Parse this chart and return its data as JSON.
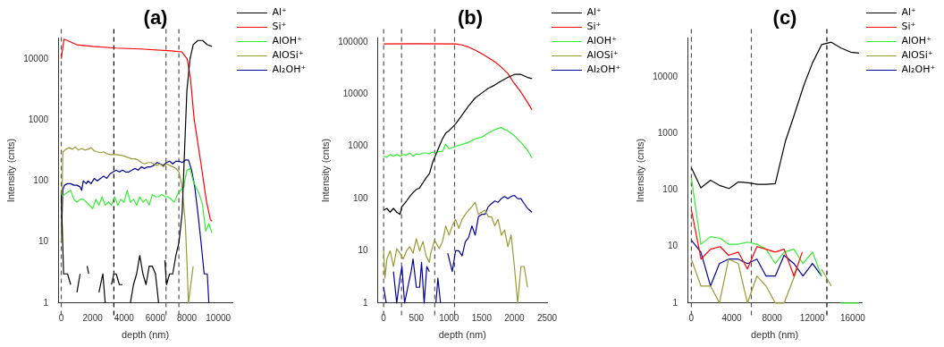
{
  "chart_data": [
    {
      "type": "line",
      "title": "(a)",
      "xlabel": "depth (nm)",
      "ylabel": "Intensity (cnts)",
      "log": "y",
      "grid": false,
      "legend": "top right",
      "marker": "none",
      "line_style": "solid",
      "xlim": [
        -200,
        10900
      ],
      "xticks": [
        0,
        2000,
        4000,
        6000,
        8000,
        10000
      ],
      "ylim": [
        1,
        22000
      ],
      "yticks": [
        1,
        10,
        100,
        1000,
        10000
      ],
      "ref_lines": [
        {
          "axis": "x",
          "value": 0,
          "color": "#555555",
          "line_style": "dashed"
        },
        {
          "axis": "x",
          "value": 3350,
          "color": "#000000",
          "line_style": "dashed"
        },
        {
          "axis": "x",
          "value": 6670,
          "color": "#555555",
          "line_style": "dashed"
        },
        {
          "axis": "x",
          "value": 7490,
          "color": "#555555",
          "line_style": "dashed"
        }
      ],
      "series": [
        {
          "name": "Al⁺",
          "color": "#000000",
          "x": [
            0,
            150,
            400,
            600,
            800,
            1000,
            1200,
            1400,
            1650,
            1750,
            2000,
            2400,
            2650,
            2800,
            3000,
            3200,
            3350,
            3500,
            3700,
            3900,
            4100,
            4400,
            4600,
            4800,
            5000,
            5200,
            5400,
            5600,
            5800,
            6000,
            6200,
            6400,
            6600,
            6700,
            6900,
            7100,
            7300,
            7500,
            7700,
            7850,
            8000,
            8200,
            8400,
            8700,
            9000,
            9300,
            9600
          ],
          "values": [
            60,
            3,
            3,
            2,
            null,
            1.5,
            3,
            null,
            4,
            3,
            null,
            1.5,
            3,
            1,
            null,
            2,
            3,
            3,
            2,
            2,
            null,
            1,
            2,
            3,
            6,
            3,
            2,
            4,
            4,
            3,
            1,
            null,
            5,
            2,
            3,
            3,
            6,
            10,
            30,
            300,
            3000,
            10000,
            17000,
            20000,
            20000,
            17000,
            16000
          ]
        },
        {
          "name": "Si⁺",
          "color": "#ff0000",
          "x": [
            0,
            175,
            1000,
            2000,
            3500,
            5000,
            7000,
            7670,
            8020,
            8230,
            8460,
            8900,
            9250,
            9500,
            9600
          ],
          "values": [
            10000,
            21000,
            17000,
            16000,
            15000,
            14500,
            13500,
            13000,
            10000,
            4700,
            1050,
            190,
            46,
            23,
            22
          ]
        },
        {
          "name": "AlOH⁺",
          "color": "#33ee33",
          "x": [
            0,
            200,
            400,
            600,
            800,
            1000,
            1200,
            1400,
            1600,
            1800,
            2000,
            2200,
            2400,
            2600,
            2800,
            3000,
            3200,
            3400,
            3600,
            3800,
            4000,
            4200,
            4400,
            4600,
            4800,
            5000,
            5200,
            5400,
            5600,
            5800,
            6000,
            6200,
            6400,
            6600,
            6800,
            7000,
            7200,
            7400,
            7600,
            7800,
            8000,
            8200,
            8400,
            8800,
            9000,
            9200,
            9400,
            9600
          ],
          "values": [
            55,
            60,
            65,
            70,
            50,
            45,
            50,
            50,
            45,
            40,
            35,
            50,
            40,
            55,
            40,
            45,
            40,
            55,
            40,
            50,
            45,
            70,
            45,
            50,
            40,
            55,
            45,
            50,
            40,
            60,
            55,
            55,
            60,
            55,
            55,
            50,
            45,
            60,
            70,
            80,
            150,
            160,
            100,
            60,
            40,
            15,
            20,
            14
          ]
        },
        {
          "name": "AlOSi⁺",
          "color": "#999933",
          "x": [
            0,
            100,
            300,
            500,
            700,
            900,
            1100,
            1300,
            1500,
            1700,
            1900,
            2100,
            2300,
            2500,
            2700,
            2900,
            3100,
            3300,
            3500,
            3700,
            3900,
            4100,
            4300,
            4500,
            4700,
            4900,
            5100,
            5300,
            5500,
            5700,
            5900,
            6100,
            6300,
            6500,
            6700,
            6900,
            7100,
            7300,
            7500,
            7700,
            7900,
            8000,
            8100,
            8400
          ],
          "values": [
            10,
            300,
            330,
            350,
            330,
            360,
            320,
            340,
            320,
            330,
            350,
            310,
            300,
            290,
            300,
            280,
            270,
            270,
            270,
            265,
            260,
            250,
            240,
            230,
            230,
            220,
            200,
            190,
            200,
            200,
            190,
            180,
            190,
            170,
            190,
            180,
            170,
            160,
            140,
            80,
            20,
            5,
            1,
            4
          ]
        },
        {
          "name": "Al₂OH⁺",
          "color": "#000099",
          "x": [
            0,
            100,
            200,
            400,
            600,
            800,
            1000,
            1200,
            1300,
            1400,
            1600,
            1700,
            1900,
            2100,
            2300,
            2500,
            2700,
            2900,
            3100,
            3300,
            3500,
            3700,
            3900,
            4100,
            4300,
            4500,
            4700,
            4900,
            5100,
            5300,
            5500,
            5700,
            5900,
            6100,
            6300,
            6500,
            6700,
            6900,
            7100,
            7300,
            7500,
            7700,
            7900,
            8100,
            8300,
            8500,
            8700,
            8900,
            9100,
            9300,
            9400
          ],
          "values": [
            10,
            70,
            85,
            90,
            90,
            85,
            85,
            80,
            70,
            100,
            90,
            100,
            90,
            110,
            100,
            110,
            120,
            110,
            130,
            140,
            150,
            140,
            150,
            140,
            140,
            150,
            160,
            150,
            170,
            160,
            170,
            170,
            180,
            200,
            190,
            180,
            200,
            210,
            190,
            210,
            210,
            200,
            220,
            220,
            150,
            80,
            30,
            10,
            3,
            3,
            1
          ]
        }
      ]
    },
    {
      "type": "line",
      "title": "(b)",
      "xlabel": "depth (nm)",
      "ylabel": "Intensity (cnts)",
      "log": "y",
      "grid": false,
      "legend": "top right",
      "marker": "none",
      "line_style": "solid",
      "xlim": [
        -90,
        2500
      ],
      "xticks": [
        0,
        500,
        1000,
        1500,
        2000,
        2500
      ],
      "ylim": [
        1,
        120000
      ],
      "yticks": [
        1,
        10,
        100,
        1000,
        10000,
        100000
      ],
      "ref_lines": [
        {
          "axis": "x",
          "value": 0,
          "color": "#555555",
          "line_style": "dashed"
        },
        {
          "axis": "x",
          "value": 274,
          "color": "#555555",
          "line_style": "dashed"
        },
        {
          "axis": "x",
          "value": 782,
          "color": "#555555",
          "line_style": "dashed"
        },
        {
          "axis": "x",
          "value": 1085,
          "color": "#555555",
          "line_style": "dashed"
        }
      ],
      "series": [
        {
          "name": "Al⁺",
          "color": "#000000",
          "x": [
            0,
            50,
            100,
            150,
            200,
            250,
            280,
            350,
            400,
            450,
            500,
            550,
            600,
            650,
            700,
            750,
            800,
            850,
            900,
            950,
            1000,
            1100,
            1200,
            1300,
            1400,
            1500,
            1600,
            1700,
            1800,
            1900,
            2000,
            2100,
            2200,
            2270
          ],
          "values": [
            60,
            65,
            55,
            65,
            55,
            50,
            70,
            90,
            110,
            130,
            150,
            160,
            200,
            250,
            300,
            500,
            700,
            1000,
            1400,
            1800,
            2000,
            2700,
            4000,
            6000,
            8500,
            10500,
            13000,
            15000,
            18000,
            21000,
            24000,
            24000,
            21000,
            20000
          ]
        },
        {
          "name": "Si⁺",
          "color": "#ff0000",
          "x": [
            0,
            500,
            1100,
            1200,
            1300,
            1400,
            1500,
            1600,
            1700,
            1800,
            1900,
            2000,
            2100,
            2200,
            2270
          ],
          "values": [
            92000,
            93000,
            92000,
            88000,
            80000,
            70000,
            60000,
            50000,
            42000,
            33000,
            25000,
            16000,
            11000,
            7000,
            5000
          ]
        },
        {
          "name": "AlOH⁺",
          "color": "#33ee33",
          "x": [
            0,
            50,
            100,
            150,
            200,
            250,
            300,
            350,
            400,
            450,
            500,
            550,
            600,
            650,
            700,
            750,
            800,
            850,
            900,
            950,
            1000,
            1050,
            1100,
            1200,
            1300,
            1400,
            1500,
            1600,
            1700,
            1800,
            1850,
            1900,
            2000,
            2100,
            2200,
            2270
          ],
          "values": [
            650,
            620,
            700,
            650,
            700,
            650,
            700,
            680,
            750,
            650,
            720,
            700,
            750,
            750,
            720,
            780,
            750,
            800,
            800,
            1100,
            900,
            950,
            1000,
            1100,
            1200,
            1400,
            1500,
            1800,
            2100,
            2300,
            2100,
            2000,
            1600,
            1200,
            850,
            600
          ]
        },
        {
          "name": "AlOSi⁺",
          "color": "#999933",
          "x": [
            0,
            20,
            50,
            100,
            150,
            200,
            250,
            300,
            350,
            400,
            450,
            500,
            550,
            600,
            650,
            700,
            720,
            780,
            850,
            900,
            950,
            1000,
            1050,
            1100,
            1150,
            1200,
            1250,
            1300,
            1350,
            1400,
            1450,
            1500,
            1550,
            1600,
            1650,
            1700,
            1750,
            1800,
            1850,
            1900,
            1950,
            2000,
            2050,
            2100,
            2150,
            2200
          ],
          "values": [
            10,
            3,
            7,
            10,
            5,
            11,
            9,
            7,
            10,
            12,
            9,
            17,
            10,
            15,
            8,
            6,
            9,
            16,
            11,
            15,
            30,
            20,
            30,
            40,
            27,
            40,
            50,
            60,
            70,
            85,
            50,
            55,
            60,
            45,
            45,
            30,
            40,
            20,
            25,
            12,
            20,
            5,
            1,
            5,
            5,
            2
          ]
        },
        {
          "name": "Al₂OH⁺",
          "color": "#000099",
          "x": [
            0,
            40,
            90,
            150,
            200,
            250,
            280,
            320,
            370,
            420,
            450,
            500,
            550,
            580,
            620,
            660,
            700,
            750,
            800,
            830,
            870,
            900,
            980,
            1050,
            1100,
            1150,
            1200,
            1250,
            1300,
            1350,
            1400,
            1450,
            1500,
            1550,
            1600,
            1650,
            1700,
            1750,
            1800,
            1850,
            1900,
            1950,
            2000,
            2050,
            2100,
            2150,
            2200,
            2270
          ],
          "values": [
            2,
            1,
            null,
            4,
            1,
            3,
            5,
            1,
            2,
            4,
            7,
            2,
            2,
            6,
            1,
            5,
            4,
            null,
            1,
            3,
            1,
            null,
            9,
            4,
            10,
            10,
            8,
            15,
            18,
            30,
            20,
            45,
            50,
            50,
            70,
            80,
            90,
            85,
            100,
            110,
            100,
            110,
            115,
            100,
            100,
            80,
            65,
            55
          ]
        }
      ]
    },
    {
      "type": "line",
      "title": "(c)",
      "xlabel": "depth (nm)",
      "ylabel": "Intensity (cnts)",
      "log": "y",
      "grid": false,
      "legend": "top right",
      "marker": "none",
      "line_style": "solid",
      "xlim": [
        -390,
        16900
      ],
      "xticks": [
        0,
        4000,
        8000,
        12000,
        16000
      ],
      "ylim": [
        1,
        50000
      ],
      "yticks": [
        1,
        10,
        100,
        1000,
        10000
      ],
      "ref_lines": [
        {
          "axis": "x",
          "value": 0,
          "color": "#555555",
          "line_style": "dashed"
        },
        {
          "axis": "x",
          "value": 5950,
          "color": "#555555",
          "line_style": "dashed"
        },
        {
          "axis": "x",
          "value": 13440,
          "color": "#000000",
          "line_style": "dashed"
        }
      ],
      "series": [
        {
          "name": "Al⁺",
          "color": "#000000",
          "x": [
            0,
            940,
            1900,
            2860,
            3750,
            4650,
            5620,
            6580,
            7400,
            8320,
            9340,
            10220,
            11130,
            12010,
            12920,
            13880,
            14850,
            15810,
            16640
          ],
          "values": [
            250,
            110,
            150,
            120,
            107,
            140,
            135,
            127,
            127,
            130,
            750,
            2200,
            7000,
            18000,
            38000,
            42000,
            33000,
            28000,
            27000
          ]
        },
        {
          "name": "Si⁺",
          "color": "#ff0000",
          "x": [
            0,
            960,
            1900,
            2860,
            3690,
            4650,
            5560,
            6500,
            7410,
            8320,
            9200,
            10170,
            11000
          ],
          "values": [
            45,
            6,
            9,
            10,
            7,
            8,
            4,
            10,
            9,
            8,
            9,
            3,
            8
          ]
        },
        {
          "name": "AlOH⁺",
          "color": "#33ee33",
          "x": [
            0,
            940,
            1900,
            2860,
            3690,
            4650,
            5560,
            6500,
            7410,
            8320,
            9200,
            10170,
            11070,
            12010,
            12920,
            13900,
            14800,
            15800,
            16640
          ],
          "values": [
            165,
            11,
            15,
            14,
            11,
            11,
            12,
            11,
            9,
            5,
            8,
            9,
            5,
            8,
            3,
            null,
            1,
            1,
            1
          ]
        },
        {
          "name": "AlOSi⁺",
          "color": "#999933",
          "x": [
            0,
            940,
            1900,
            2780,
            3690,
            4650,
            5560,
            6500,
            7410,
            8320,
            9200,
            10500,
            11500,
            12900,
            13880
          ],
          "values": [
            6,
            2,
            2,
            1,
            6,
            5,
            1,
            3,
            2,
            1,
            1,
            4,
            null,
            4,
            2
          ]
        },
        {
          "name": "Al₂OH⁺",
          "color": "#000099",
          "x": [
            0,
            940,
            1900,
            2780,
            3690,
            4650,
            5560,
            6500,
            7410,
            8320,
            9200,
            10170,
            11070,
            12010,
            12920
          ],
          "values": [
            13,
            8,
            2,
            5,
            6,
            6,
            5,
            6,
            3,
            3,
            7,
            5,
            3,
            5,
            3
          ]
        }
      ]
    }
  ]
}
